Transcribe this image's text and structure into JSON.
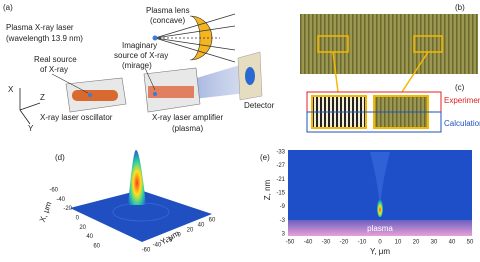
{
  "panel_a": {
    "label": "(a)",
    "laser_title": "Plasma X-ray laser",
    "wavelength": "(wavelength 13.9 nm)",
    "lens_title": "Plasma lens",
    "lens_note": "(concave)",
    "imaginary_lines": [
      "Imaginary",
      "source of X-ray",
      "(mirage)"
    ],
    "real_lines": [
      "Real source",
      "of X-ray"
    ],
    "axis_x": "X",
    "axis_z": "Z",
    "axis_y": "Y",
    "oscillator": "X-ray laser oscillator",
    "amplifier": "X-ray laser amplifier",
    "amplifier_note": "(plasma)",
    "detector": "Detector"
  },
  "panel_b": {
    "label": "(b)"
  },
  "panel_c": {
    "label": "(c)",
    "experiment": "Experiment",
    "calculation": "Calculation"
  },
  "panel_d": {
    "label": "(d)",
    "x_axis_title": "X, μm",
    "y_axis_title": "Y, μm",
    "x_ticks": [
      -60,
      -40,
      -20,
      0,
      20,
      40,
      60
    ],
    "y_ticks": [
      -60,
      -40,
      -20,
      0,
      20,
      40,
      60
    ]
  },
  "panel_e": {
    "label": "(e)",
    "z_axis_title": "Z, nm",
    "y_axis_title": "Y, μm",
    "plasma": "plasma",
    "z_ticks": [
      -33,
      -27,
      -21,
      -15,
      -9,
      -3,
      3
    ],
    "y_ticks": [
      -50,
      -40,
      -30,
      -20,
      -10,
      0,
      10,
      20,
      30,
      40,
      50
    ]
  }
}
